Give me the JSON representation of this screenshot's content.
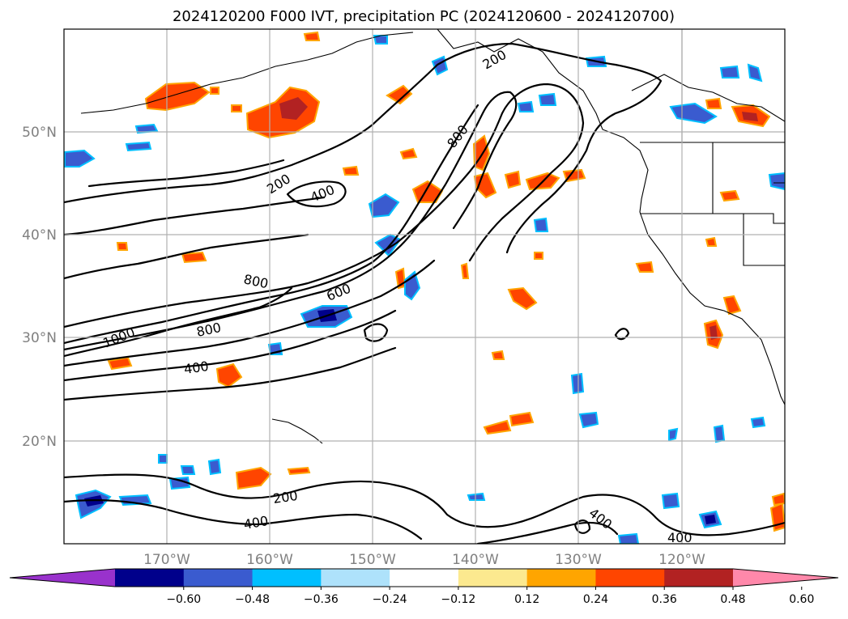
{
  "title": "2024120200 F000 IVT, precipitation PC (2024120600 - 2024120700)",
  "map": {
    "lon_ticks": [
      "170°W",
      "160°W",
      "150°W",
      "140°W",
      "130°W",
      "120°W"
    ],
    "lat_ticks": [
      "50°N",
      "40°N",
      "30°N",
      "20°N"
    ]
  },
  "contour_labels": [
    "200",
    "400",
    "200",
    "800",
    "800",
    "600",
    "1000",
    "800",
    "400",
    "200",
    "400",
    "400",
    "400"
  ],
  "colorbar": {
    "colors": [
      "#9932cc",
      "#00008b",
      "#3a5bcf",
      "#00bfff",
      "#aee2fb",
      "#ffffff",
      "#fce98f",
      "#ffa500",
      "#ff4500",
      "#b22222",
      "#ff88aa"
    ],
    "labels": [
      "−0.60",
      "−0.48",
      "−0.36",
      "−0.24",
      "−0.12",
      "0.12",
      "0.24",
      "0.36",
      "0.48",
      "0.60"
    ]
  }
}
